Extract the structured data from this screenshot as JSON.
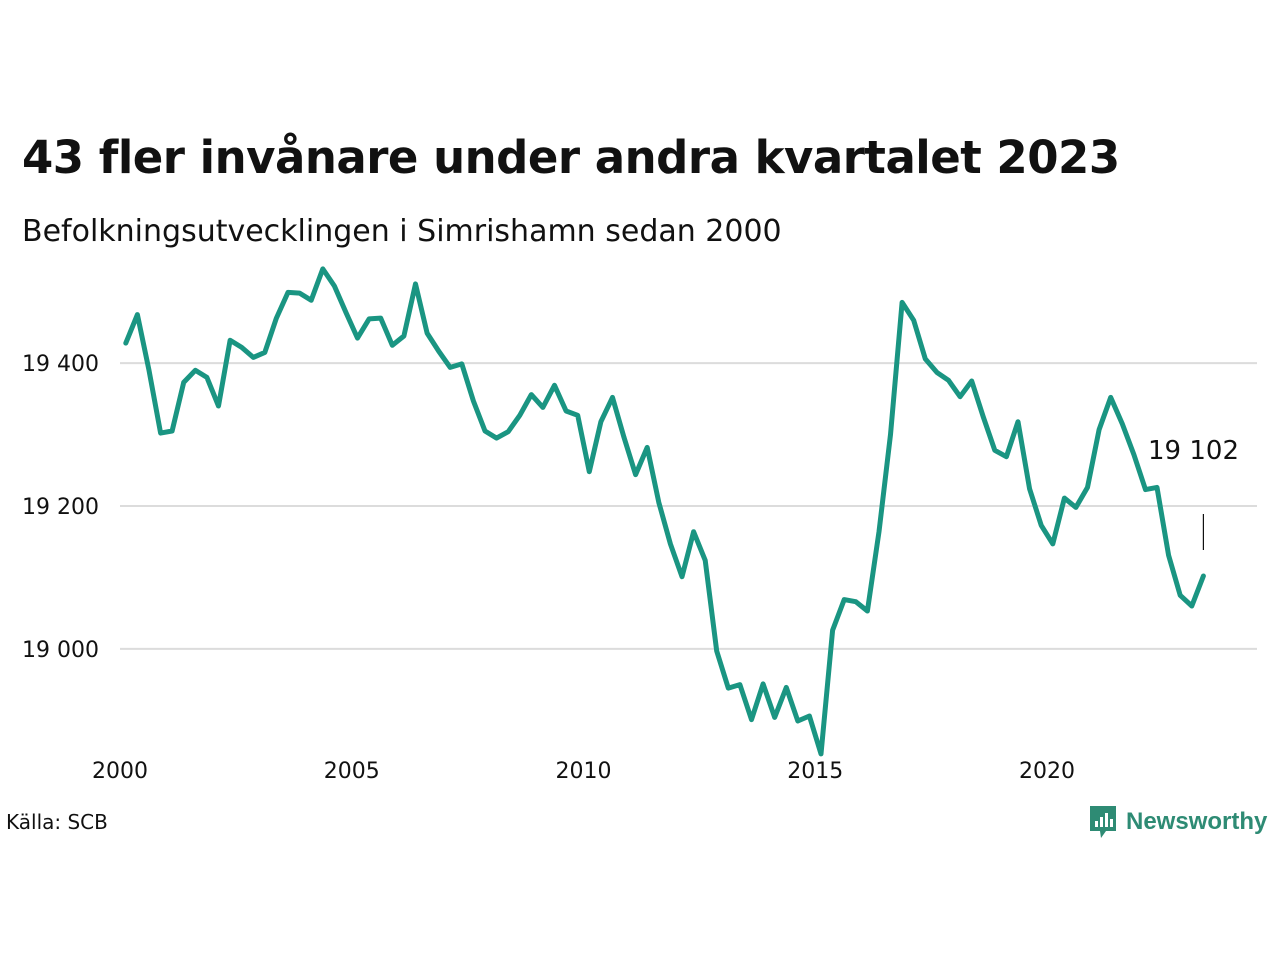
{
  "title": "43 fler invånare under andra kvartalet 2023",
  "subtitle": "Befolkningsutvecklingen i Simrishamn sedan 2000",
  "source": "Källa: SCB",
  "brand": {
    "name": "Newsworthy",
    "icon": "newsworthy-logo-icon",
    "color": "#2e8b74"
  },
  "chart_data": {
    "type": "line",
    "title": "43 fler invånare under andra kvartalet 2023",
    "subtitle": "Befolkningsutvecklingen i Simrishamn sedan 2000",
    "line_color": "#1a9582",
    "grid": true,
    "ylim": [
      18850,
      19550
    ],
    "xlim": [
      2000,
      2024.1
    ],
    "yticks": [
      19000,
      19200,
      19400
    ],
    "ytick_labels": [
      "19 000",
      "19 200",
      "19 400"
    ],
    "xticks": [
      2000,
      2005,
      2010,
      2015,
      2020
    ],
    "xtick_labels": [
      "2000",
      "2005",
      "2010",
      "2015",
      "2020"
    ],
    "last_label": "19 102",
    "series": [
      {
        "x": [
          2000.125,
          2000.375,
          2000.625,
          2000.875,
          2001.125,
          2001.375,
          2001.625,
          2001.875,
          2002.125,
          2002.375,
          2002.625,
          2002.875,
          2003.125,
          2003.375,
          2003.625,
          2003.875,
          2004.125,
          2004.375,
          2004.625,
          2004.875,
          2005.125,
          2005.375,
          2005.625,
          2005.875,
          2006.125,
          2006.375,
          2006.625,
          2006.875,
          2007.125,
          2007.375,
          2007.625,
          2007.875,
          2008.125,
          2008.375,
          2008.625,
          2008.875,
          2009.125,
          2009.375,
          2009.625,
          2009.875,
          2010.125,
          2010.375,
          2010.625,
          2010.875,
          2011.125,
          2011.375,
          2011.625,
          2011.875,
          2012.125,
          2012.375,
          2012.625,
          2012.875,
          2013.125,
          2013.375,
          2013.625,
          2013.875,
          2014.125,
          2014.375,
          2014.625,
          2014.875,
          2015.125,
          2015.375,
          2015.625,
          2015.875,
          2016.125,
          2016.375,
          2016.625,
          2016.875,
          2017.125,
          2017.375,
          2017.625,
          2017.875,
          2018.125,
          2018.375,
          2018.625,
          2018.875,
          2019.125,
          2019.375,
          2019.625,
          2019.875,
          2020.125,
          2020.375,
          2020.625,
          2020.875,
          2021.125,
          2021.375,
          2021.625,
          2021.875,
          2022.125,
          2022.375,
          2022.625,
          2022.875,
          2023.125,
          2023.375
        ],
        "values": [
          19428,
          19468,
          19390,
          19302,
          19305,
          19373,
          19390,
          19380,
          19340,
          19432,
          19422,
          19408,
          19415,
          19463,
          19499,
          19498,
          19488,
          19532,
          19508,
          19471,
          19435,
          19462,
          19463,
          19425,
          19438,
          19511,
          19442,
          19417,
          19394,
          19399,
          19347,
          19305,
          19295,
          19304,
          19327,
          19356,
          19338,
          19369,
          19333,
          19327,
          19248,
          19318,
          19352,
          19296,
          19244,
          19282,
          19205,
          19147,
          19101,
          19164,
          19124,
          18997,
          18945,
          18950,
          18901,
          18951,
          18904,
          18946,
          18899,
          18906,
          18853,
          19026,
          19069,
          19066,
          19053,
          19164,
          19300,
          19485,
          19460,
          19406,
          19387,
          19376,
          19353,
          19375,
          19325,
          19278,
          19269,
          19318,
          19224,
          19173,
          19147,
          19211,
          19198,
          19226,
          19307,
          19352,
          19315,
          19272,
          19223,
          19226,
          19131,
          19075,
          19060,
          19102
        ]
      }
    ]
  }
}
